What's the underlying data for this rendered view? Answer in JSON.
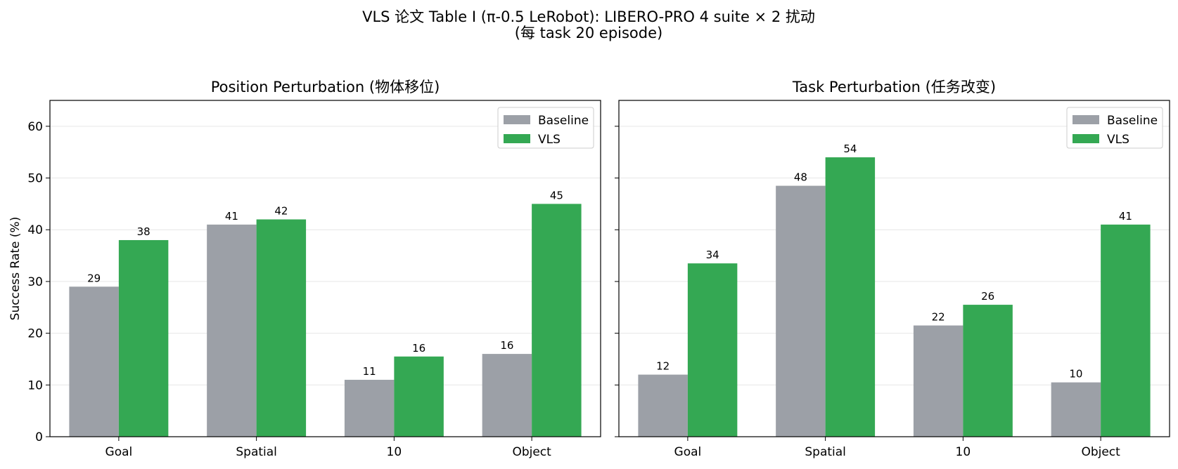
{
  "figure": {
    "title_line1": "VLS 论文 Table I (π-0.5 LeRobot): LIBERO-PRO 4 suite × 2 扰动",
    "title_line2": "(每 task 20 episode)"
  },
  "colors": {
    "baseline": "#9ca0a7",
    "vls": "#34a853",
    "grid": "#e6e6e6"
  },
  "chart_data": [
    {
      "type": "bar",
      "title": "Position Perturbation (物体移位)",
      "ylabel": "Success Rate (%)",
      "xlabel": "",
      "ylim": [
        0,
        65
      ],
      "yticks": [
        0,
        10,
        20,
        30,
        40,
        50,
        60
      ],
      "grid": "y",
      "legend": "top-right",
      "categories": [
        "Goal",
        "Spatial",
        "10",
        "Object"
      ],
      "series": [
        {
          "name": "Baseline",
          "values": [
            29,
            41,
            11,
            16
          ],
          "labels": [
            "29",
            "41",
            "11",
            "16"
          ]
        },
        {
          "name": "VLS",
          "values": [
            38,
            42,
            15.5,
            45
          ],
          "labels": [
            "38",
            "42",
            "16",
            "45"
          ]
        }
      ]
    },
    {
      "type": "bar",
      "title": "Task Perturbation (任务改变)",
      "ylabel": "",
      "xlabel": "",
      "ylim": [
        0,
        65
      ],
      "yticks": [
        0,
        10,
        20,
        30,
        40,
        50,
        60
      ],
      "grid": "y",
      "legend": "top-right",
      "categories": [
        "Goal",
        "Spatial",
        "10",
        "Object"
      ],
      "series": [
        {
          "name": "Baseline",
          "values": [
            12,
            48.5,
            21.5,
            10.5
          ],
          "labels": [
            "12",
            "48",
            "22",
            "10"
          ]
        },
        {
          "name": "VLS",
          "values": [
            33.5,
            54,
            25.5,
            41
          ],
          "labels": [
            "34",
            "54",
            "26",
            "41"
          ]
        }
      ]
    }
  ]
}
